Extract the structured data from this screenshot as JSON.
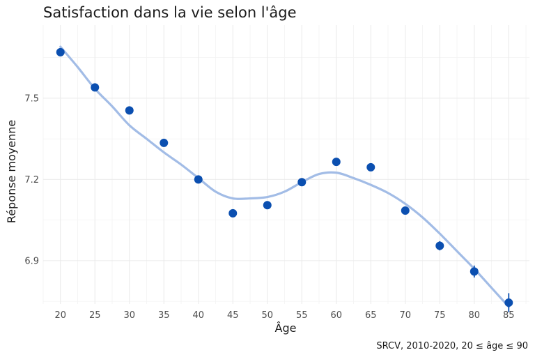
{
  "chart_data": {
    "type": "scatter",
    "title": "Satisfaction dans la vie selon l'âge",
    "xlabel": "Âge",
    "ylabel": "Réponse moyenne",
    "caption": "SRCV, 2010-2020, 20 ≤ âge ≤ 90",
    "xlim": [
      17.5,
      88
    ],
    "ylim": [
      6.74,
      7.77
    ],
    "x_ticks": [
      20,
      25,
      30,
      35,
      40,
      45,
      50,
      55,
      60,
      65,
      70,
      75,
      80,
      85
    ],
    "y_ticks": [
      6.9,
      7.2,
      7.5
    ],
    "y_tick_labels": [
      "6.9",
      "7.2",
      "7.5"
    ],
    "x_minor_step": 2.5,
    "y_minor_ticks": [
      6.75,
      7.05,
      7.35,
      7.65
    ],
    "grid": true,
    "points": {
      "x": [
        20,
        25,
        30,
        35,
        40,
        45,
        50,
        55,
        60,
        65,
        70,
        75,
        80,
        85
      ],
      "y": [
        7.67,
        7.54,
        7.455,
        7.335,
        7.2,
        7.075,
        7.105,
        7.19,
        7.265,
        7.245,
        7.085,
        6.955,
        6.86,
        6.745
      ],
      "err": [
        0.014,
        0.012,
        0.011,
        0.011,
        0.011,
        0.011,
        0.011,
        0.011,
        0.011,
        0.011,
        0.014,
        0.017,
        0.022,
        0.035
      ],
      "color": "#0b4fb0"
    },
    "smooth": {
      "x": [
        20,
        22.5,
        25,
        27.5,
        30,
        32.5,
        35,
        37.5,
        40,
        42.5,
        45,
        47.5,
        50,
        52.5,
        55,
        57.5,
        60,
        62.5,
        65,
        67.5,
        70,
        72.5,
        75,
        77.5,
        80,
        82.5,
        85
      ],
      "y": [
        7.69,
        7.615,
        7.535,
        7.47,
        7.4,
        7.35,
        7.3,
        7.255,
        7.205,
        7.155,
        7.13,
        7.13,
        7.135,
        7.155,
        7.19,
        7.22,
        7.225,
        7.205,
        7.18,
        7.15,
        7.11,
        7.06,
        7.0,
        6.935,
        6.87,
        6.8,
        6.73
      ],
      "color": "#a2bce6"
    }
  }
}
